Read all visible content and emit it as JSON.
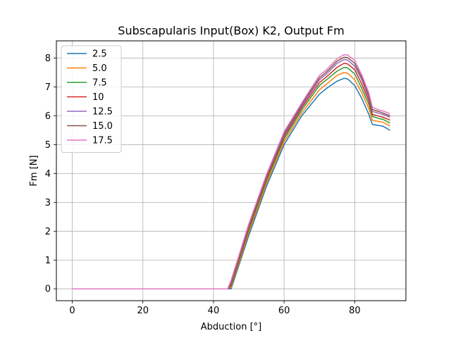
{
  "chart_data": {
    "type": "line",
    "title": "Subscapularis Input(Box) K2, Output Fm",
    "xlabel": "Abduction [°]",
    "ylabel": "Fm [N]",
    "xlim": [
      -4.5,
      94.5
    ],
    "ylim": [
      -0.41,
      8.6
    ],
    "xticks": [
      0,
      20,
      40,
      60,
      80
    ],
    "yticks": [
      0,
      1,
      2,
      3,
      4,
      5,
      6,
      7,
      8
    ],
    "grid": true,
    "legend_position": "upper-left",
    "x": [
      0,
      10,
      20,
      30,
      40,
      43,
      44,
      45,
      50,
      55,
      60,
      65,
      70,
      72,
      75,
      77,
      78,
      80,
      82,
      84,
      85,
      86,
      87,
      88,
      90
    ],
    "series": [
      {
        "name": "2.5",
        "color": "#1f77b4",
        "values": [
          0,
          0,
          0,
          0,
          0,
          0,
          0,
          0,
          1.85,
          3.55,
          5.0,
          6.0,
          6.75,
          6.95,
          7.2,
          7.3,
          7.28,
          7.05,
          6.6,
          6.05,
          5.7,
          5.68,
          5.66,
          5.64,
          5.5
        ]
      },
      {
        "name": "5.0",
        "color": "#ff7f0e",
        "values": [
          0,
          0,
          0,
          0,
          0,
          0,
          0,
          0.05,
          1.95,
          3.65,
          5.1,
          6.1,
          6.9,
          7.1,
          7.4,
          7.5,
          7.48,
          7.25,
          6.8,
          6.25,
          5.85,
          5.82,
          5.8,
          5.78,
          5.65
        ]
      },
      {
        "name": "7.5",
        "color": "#2ca02c",
        "values": [
          0,
          0,
          0,
          0,
          0,
          0,
          0,
          0.1,
          2.05,
          3.75,
          5.2,
          6.2,
          7.05,
          7.25,
          7.55,
          7.68,
          7.66,
          7.45,
          6.95,
          6.4,
          5.98,
          5.94,
          5.9,
          5.88,
          5.75
        ]
      },
      {
        "name": "10",
        "color": "#d62728",
        "values": [
          0,
          0,
          0,
          0,
          0,
          0,
          0,
          0.15,
          2.12,
          3.82,
          5.28,
          6.28,
          7.15,
          7.35,
          7.68,
          7.82,
          7.8,
          7.6,
          7.1,
          6.52,
          6.05,
          6.02,
          5.98,
          5.95,
          5.85
        ]
      },
      {
        "name": "12.5",
        "color": "#9467bd",
        "values": [
          0,
          0,
          0,
          0,
          0,
          0,
          0,
          0.2,
          2.18,
          3.88,
          5.34,
          6.34,
          7.25,
          7.45,
          7.82,
          7.95,
          7.93,
          7.72,
          7.25,
          6.62,
          6.15,
          6.12,
          6.08,
          6.05,
          5.95
        ]
      },
      {
        "name": "15.0",
        "color": "#8c564b",
        "values": [
          0,
          0,
          0,
          0,
          0,
          0,
          0,
          0.25,
          2.22,
          3.92,
          5.4,
          6.4,
          7.32,
          7.52,
          7.9,
          8.03,
          8.02,
          7.82,
          7.33,
          6.7,
          6.22,
          6.18,
          6.14,
          6.1,
          6.0
        ]
      },
      {
        "name": "17.5",
        "color": "#e377c2",
        "values": [
          0,
          0,
          0,
          0,
          0,
          0,
          0,
          0.3,
          2.26,
          3.96,
          5.45,
          6.45,
          7.4,
          7.6,
          7.98,
          8.12,
          8.11,
          7.92,
          7.42,
          6.8,
          6.3,
          6.25,
          6.2,
          6.17,
          6.07
        ]
      }
    ]
  }
}
